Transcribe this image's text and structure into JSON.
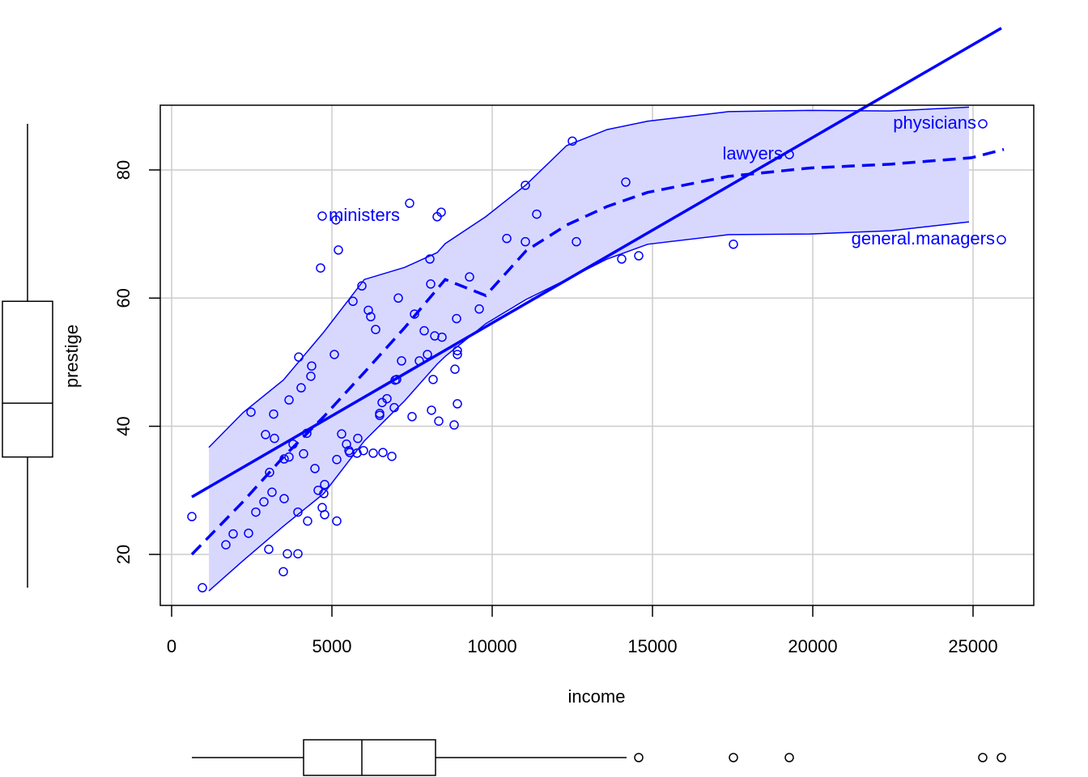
{
  "chart_data": {
    "type": "scatter",
    "xlabel": "income",
    "ylabel": "prestige",
    "xlim": [
      -354,
      26894
    ],
    "ylim": [
      12.04,
      90.1
    ],
    "xticks": [
      0,
      5000,
      10000,
      15000,
      20000,
      25000
    ],
    "yticks": [
      20,
      40,
      60,
      80
    ],
    "grid": true,
    "color": "#0000ff",
    "band_color": "#d8d8ff",
    "x": [
      631,
      960,
      1692,
      1919,
      2399,
      2475,
      2626,
      2879,
      2929,
      3030,
      3056,
      3131,
      3182,
      3207,
      3510,
      3485,
      3510,
      3611,
      3662,
      3662,
      3788,
      3939,
      3939,
      3965,
      4040,
      4116,
      4217,
      4242,
      4343,
      4369,
      4470,
      4571,
      4646,
      4697,
      4747,
      4773,
      4773,
      5076,
      5126,
      5152,
      5152,
      5202,
      5303,
      5455,
      5530,
      5556,
      5657,
      5783,
      5808,
      5934,
      5985,
      6136,
      6212,
      6288,
      6364,
      6490,
      6490,
      6566,
      6591,
      6717,
      6869,
      6944,
      6970,
      7020,
      7071,
      7172,
      7424,
      7500,
      7576,
      7727,
      7879,
      7980,
      8056,
      8081,
      8106,
      8157,
      8207,
      8283,
      8333,
      8409,
      8434,
      8813,
      8838,
      8889,
      8914,
      8914,
      8914,
      9293,
      9596,
      10455,
      11035,
      11035,
      11389,
      12626,
      12500,
      14040,
      14167,
      14571,
      17525,
      4697,
      19268,
      25303,
      25884
    ],
    "y": [
      25.9,
      14.8,
      21.5,
      23.2,
      23.3,
      42.2,
      26.6,
      28.2,
      38.7,
      20.8,
      32.8,
      29.7,
      41.9,
      38.1,
      28.7,
      17.3,
      34.9,
      20.1,
      35.2,
      44.1,
      37.2,
      20.1,
      26.6,
      50.8,
      46.0,
      35.7,
      38.9,
      25.2,
      47.8,
      49.4,
      33.4,
      30.0,
      64.7,
      27.3,
      29.5,
      26.2,
      30.9,
      51.2,
      72.2,
      34.8,
      25.2,
      67.5,
      38.8,
      37.2,
      36.2,
      35.9,
      59.5,
      35.8,
      38.1,
      61.9,
      36.2,
      58.1,
      57.1,
      35.8,
      55.1,
      42.0,
      41.7,
      43.7,
      35.9,
      44.3,
      35.3,
      42.9,
      47.2,
      47.3,
      60.0,
      50.2,
      74.8,
      41.5,
      57.5,
      50.2,
      54.9,
      51.2,
      66.1,
      62.2,
      42.5,
      47.3,
      54.1,
      72.7,
      40.8,
      73.4,
      53.9,
      40.2,
      48.9,
      56.8,
      51.2,
      51.8,
      43.5,
      63.3,
      58.3,
      69.3,
      77.6,
      68.8,
      73.1,
      68.8,
      84.5,
      66.1,
      78.1,
      66.6,
      68.4,
      72.8,
      82.4,
      87.2,
      69.1
    ],
    "point_labels": [
      null,
      null,
      null,
      null,
      null,
      null,
      null,
      null,
      null,
      null,
      null,
      null,
      null,
      null,
      null,
      null,
      null,
      null,
      null,
      null,
      null,
      null,
      null,
      null,
      null,
      null,
      null,
      null,
      null,
      null,
      null,
      null,
      null,
      null,
      null,
      null,
      null,
      null,
      null,
      null,
      null,
      null,
      null,
      null,
      null,
      null,
      null,
      null,
      null,
      null,
      null,
      null,
      null,
      null,
      null,
      null,
      null,
      null,
      null,
      null,
      null,
      null,
      null,
      null,
      null,
      null,
      null,
      null,
      null,
      null,
      null,
      null,
      null,
      null,
      null,
      null,
      null,
      null,
      null,
      null,
      null,
      null,
      null,
      null,
      null,
      null,
      null,
      null,
      null,
      null,
      null,
      null,
      null,
      null,
      null,
      null,
      null,
      null,
      null,
      "ministers",
      "lawyers",
      "physicians",
      "general.managers"
    ],
    "fit": {
      "intercept": 27.14,
      "slope": 0.002897
    },
    "smooth": {
      "x": [
        631,
        2222,
        3485,
        4747,
        6010,
        7273,
        8535,
        9798,
        11061,
        12323,
        13586,
        14848,
        17374,
        19899,
        22424,
        24949,
        25960
      ],
      "y": [
        20.0,
        28.2,
        35.2,
        41.5,
        48.4,
        55.4,
        62.9,
        60.4,
        67.4,
        71.4,
        74.3,
        76.5,
        79.0,
        80.3,
        80.9,
        81.9,
        83.2
      ]
    },
    "band": {
      "x": [
        1162,
        2222,
        3485,
        4747,
        6010,
        7273,
        8283,
        8535,
        9798,
        11061,
        12323,
        13586,
        14848,
        17374,
        19899,
        22424,
        24874
      ],
      "upper": [
        36.7,
        42.1,
        47.2,
        54.7,
        62.9,
        64.8,
        67.1,
        68.5,
        72.7,
        77.7,
        83.8,
        86.3,
        87.6,
        89.1,
        89.3,
        89.2,
        89.8
      ],
      "lower": [
        14.3,
        19.0,
        24.4,
        29.5,
        37.7,
        44.0,
        49.7,
        50.9,
        56.0,
        59.8,
        62.9,
        66.1,
        68.4,
        69.9,
        70.0,
        70.5,
        71.9
      ]
    },
    "boxplot_x": {
      "min": 631,
      "q1": 4116,
      "median": 5934,
      "q3": 8232,
      "max": 14192,
      "outliers": [
        14571,
        17525,
        19268,
        25303,
        25884
      ]
    },
    "boxplot_y": {
      "min": 14.8,
      "q1": 35.2,
      "median": 43.6,
      "q3": 59.5,
      "max": 87.2
    }
  }
}
